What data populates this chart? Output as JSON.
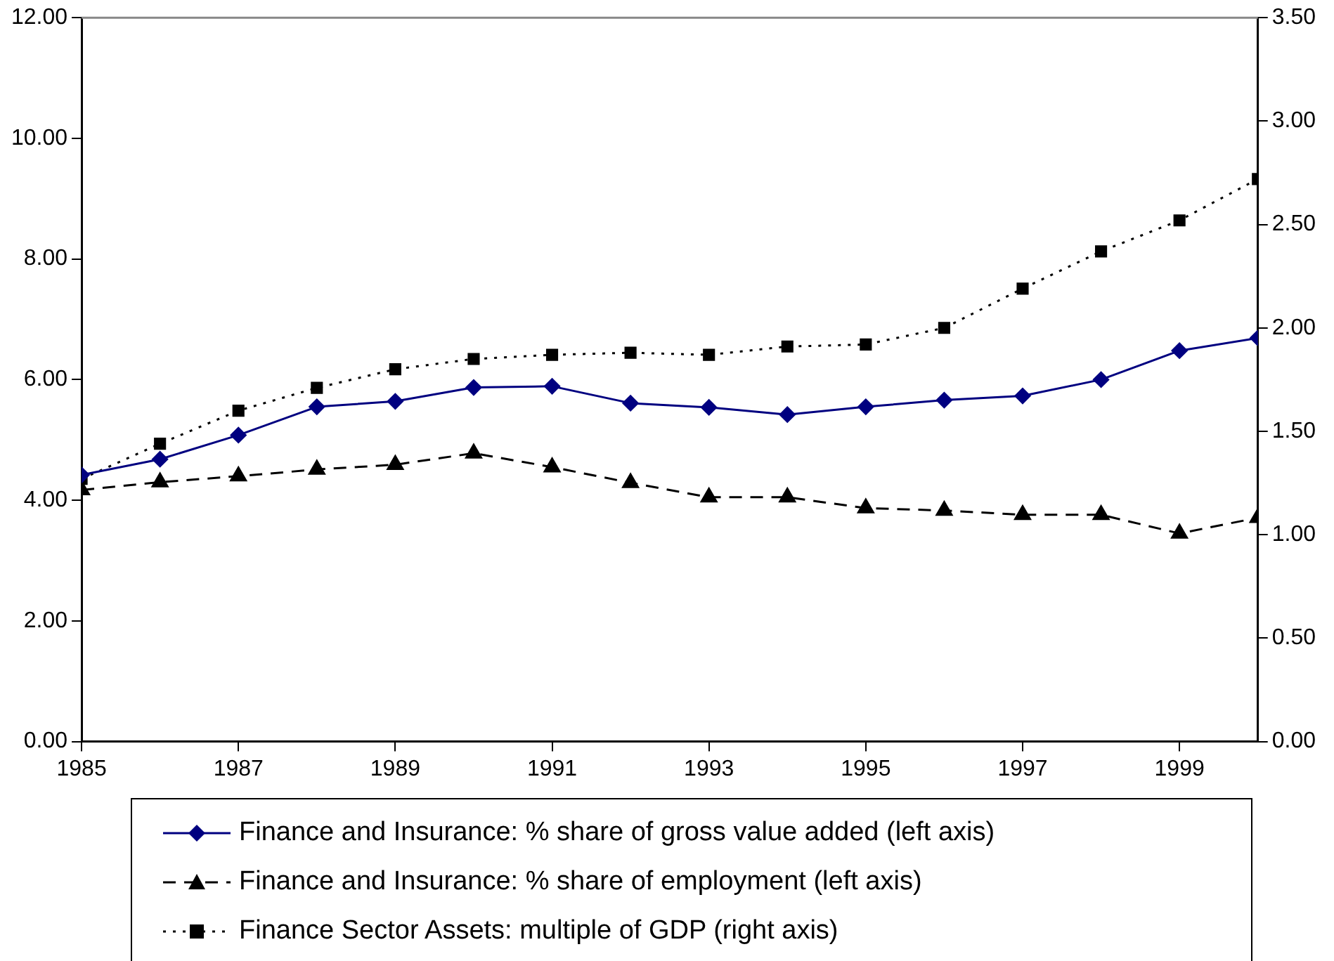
{
  "chart_data": {
    "type": "line",
    "x": [
      1985,
      1986,
      1987,
      1988,
      1989,
      1990,
      1991,
      1992,
      1993,
      1994,
      1995,
      1996,
      1997,
      1998,
      1999,
      2000
    ],
    "series": [
      {
        "name": "Finance and Insurance: % share of gross value added (left axis)",
        "color": "#000080",
        "marker": "diamond",
        "line_style": "solid",
        "values": [
          4.42,
          4.68,
          5.08,
          5.55,
          5.64,
          5.87,
          5.89,
          5.61,
          5.54,
          5.42,
          5.55,
          5.66,
          5.73,
          6.0,
          6.48,
          6.69
        ]
      },
      {
        "name": "Finance and Insurance: % share of employment (left axis)",
        "color": "#000000",
        "marker": "triangle",
        "line_style": "dashed",
        "values": [
          4.17,
          4.3,
          4.4,
          4.51,
          4.59,
          4.78,
          4.55,
          4.29,
          4.05,
          4.05,
          3.87,
          3.83,
          3.76,
          3.76,
          3.45,
          3.71
        ]
      },
      {
        "name": "Finance Sector Assets: multiple of GDP (right axis)",
        "color": "#000000",
        "marker": "square",
        "line_style": "dotted",
        "axis": "y2",
        "values": [
          1.27,
          1.44,
          1.6,
          1.71,
          1.8,
          1.85,
          1.87,
          1.88,
          1.87,
          1.91,
          1.92,
          2.0,
          2.19,
          2.37,
          2.52,
          2.72
        ]
      }
    ],
    "xlim": [
      1985,
      2000
    ],
    "xticks": [
      1985,
      1987,
      1989,
      1991,
      1993,
      1995,
      1997,
      1999
    ],
    "ylim": [
      0,
      12
    ],
    "yticks": [
      {
        "value": 0,
        "label": "0.00"
      },
      {
        "value": 2,
        "label": "2.00"
      },
      {
        "value": 4,
        "label": "4.00"
      },
      {
        "value": 6,
        "label": "6.00"
      },
      {
        "value": 8,
        "label": "8.00"
      },
      {
        "value": 10,
        "label": "10.00"
      },
      {
        "value": 12,
        "label": "12.00"
      }
    ],
    "y2lim": [
      0,
      3.5
    ],
    "y2ticks": [
      {
        "value": 0,
        "label": "0.00"
      },
      {
        "value": 0.5,
        "label": "0.50"
      },
      {
        "value": 1,
        "label": "1.00"
      },
      {
        "value": 1.5,
        "label": "1.50"
      },
      {
        "value": 2,
        "label": "2.00"
      },
      {
        "value": 2.5,
        "label": "2.50"
      },
      {
        "value": 3,
        "label": "3.00"
      },
      {
        "value": 3.5,
        "label": "3.50"
      }
    ],
    "grid": false,
    "legend": "bottom"
  }
}
